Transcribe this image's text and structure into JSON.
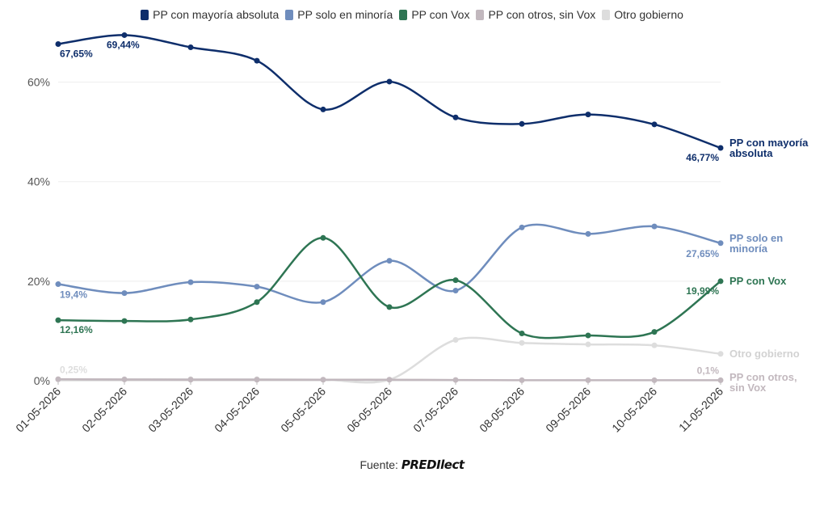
{
  "chart_data": {
    "type": "line",
    "title": "",
    "xlabel": "",
    "ylabel": "",
    "x": [
      "01-05-2026",
      "02-05-2026",
      "03-05-2026",
      "04-05-2026",
      "05-05-2026",
      "06-05-2026",
      "07-05-2026",
      "08-05-2026",
      "09-05-2026",
      "10-05-2026",
      "11-05-2026"
    ],
    "ylim": [
      0,
      70
    ],
    "yticks": [
      0,
      20,
      40,
      60
    ],
    "ytick_labels": [
      "0%",
      "20%",
      "40%",
      "60%"
    ],
    "grid": true,
    "legend_position": "top-center",
    "series": [
      {
        "name": "PP con mayoría absoluta",
        "end_label": [
          "PP con mayoría",
          "absoluta"
        ],
        "color": "#0e2e6b",
        "values": [
          67.65,
          69.44,
          67.0,
          64.3,
          54.5,
          60.1,
          52.9,
          51.6,
          53.5,
          51.5,
          46.77
        ],
        "start_label": "67,65%",
        "peak_label": "69,44%",
        "last_label": "46,77%"
      },
      {
        "name": "PP solo en minoría",
        "end_label": [
          "PP solo en",
          "minoría"
        ],
        "color": "#6f8dbd",
        "values": [
          19.4,
          17.6,
          19.8,
          18.9,
          15.8,
          24.1,
          18.1,
          30.8,
          29.5,
          31.0,
          27.65
        ],
        "start_label": "19,4%",
        "last_label": "27,65%"
      },
      {
        "name": "PP con Vox",
        "end_label": [
          "PP con Vox"
        ],
        "color": "#2e7553",
        "values": [
          12.16,
          12.0,
          12.3,
          15.8,
          28.7,
          14.8,
          20.2,
          9.5,
          9.1,
          9.8,
          19.99
        ],
        "start_label": "12,16%",
        "last_label": "19,99%"
      },
      {
        "name": "PP con otros, sin Vox",
        "end_label": [
          "PP con otros,",
          "sin Vox"
        ],
        "color": "#c2b8be",
        "values": [
          0.3,
          0.25,
          0.2,
          0.2,
          0.2,
          0.2,
          0.15,
          0.1,
          0.1,
          0.1,
          0.1
        ],
        "last_label": "0,1%"
      },
      {
        "name": "Otro gobierno",
        "end_label": [
          "Otro gobierno"
        ],
        "color": "#dddddd",
        "values": [
          0.25,
          0.3,
          0.3,
          0.3,
          0.2,
          0.2,
          8.2,
          7.6,
          7.3,
          7.1,
          5.4
        ],
        "start_label": "0,25%"
      }
    ]
  },
  "source": {
    "label": "Fuente:",
    "brand": "PREDIlect"
  }
}
